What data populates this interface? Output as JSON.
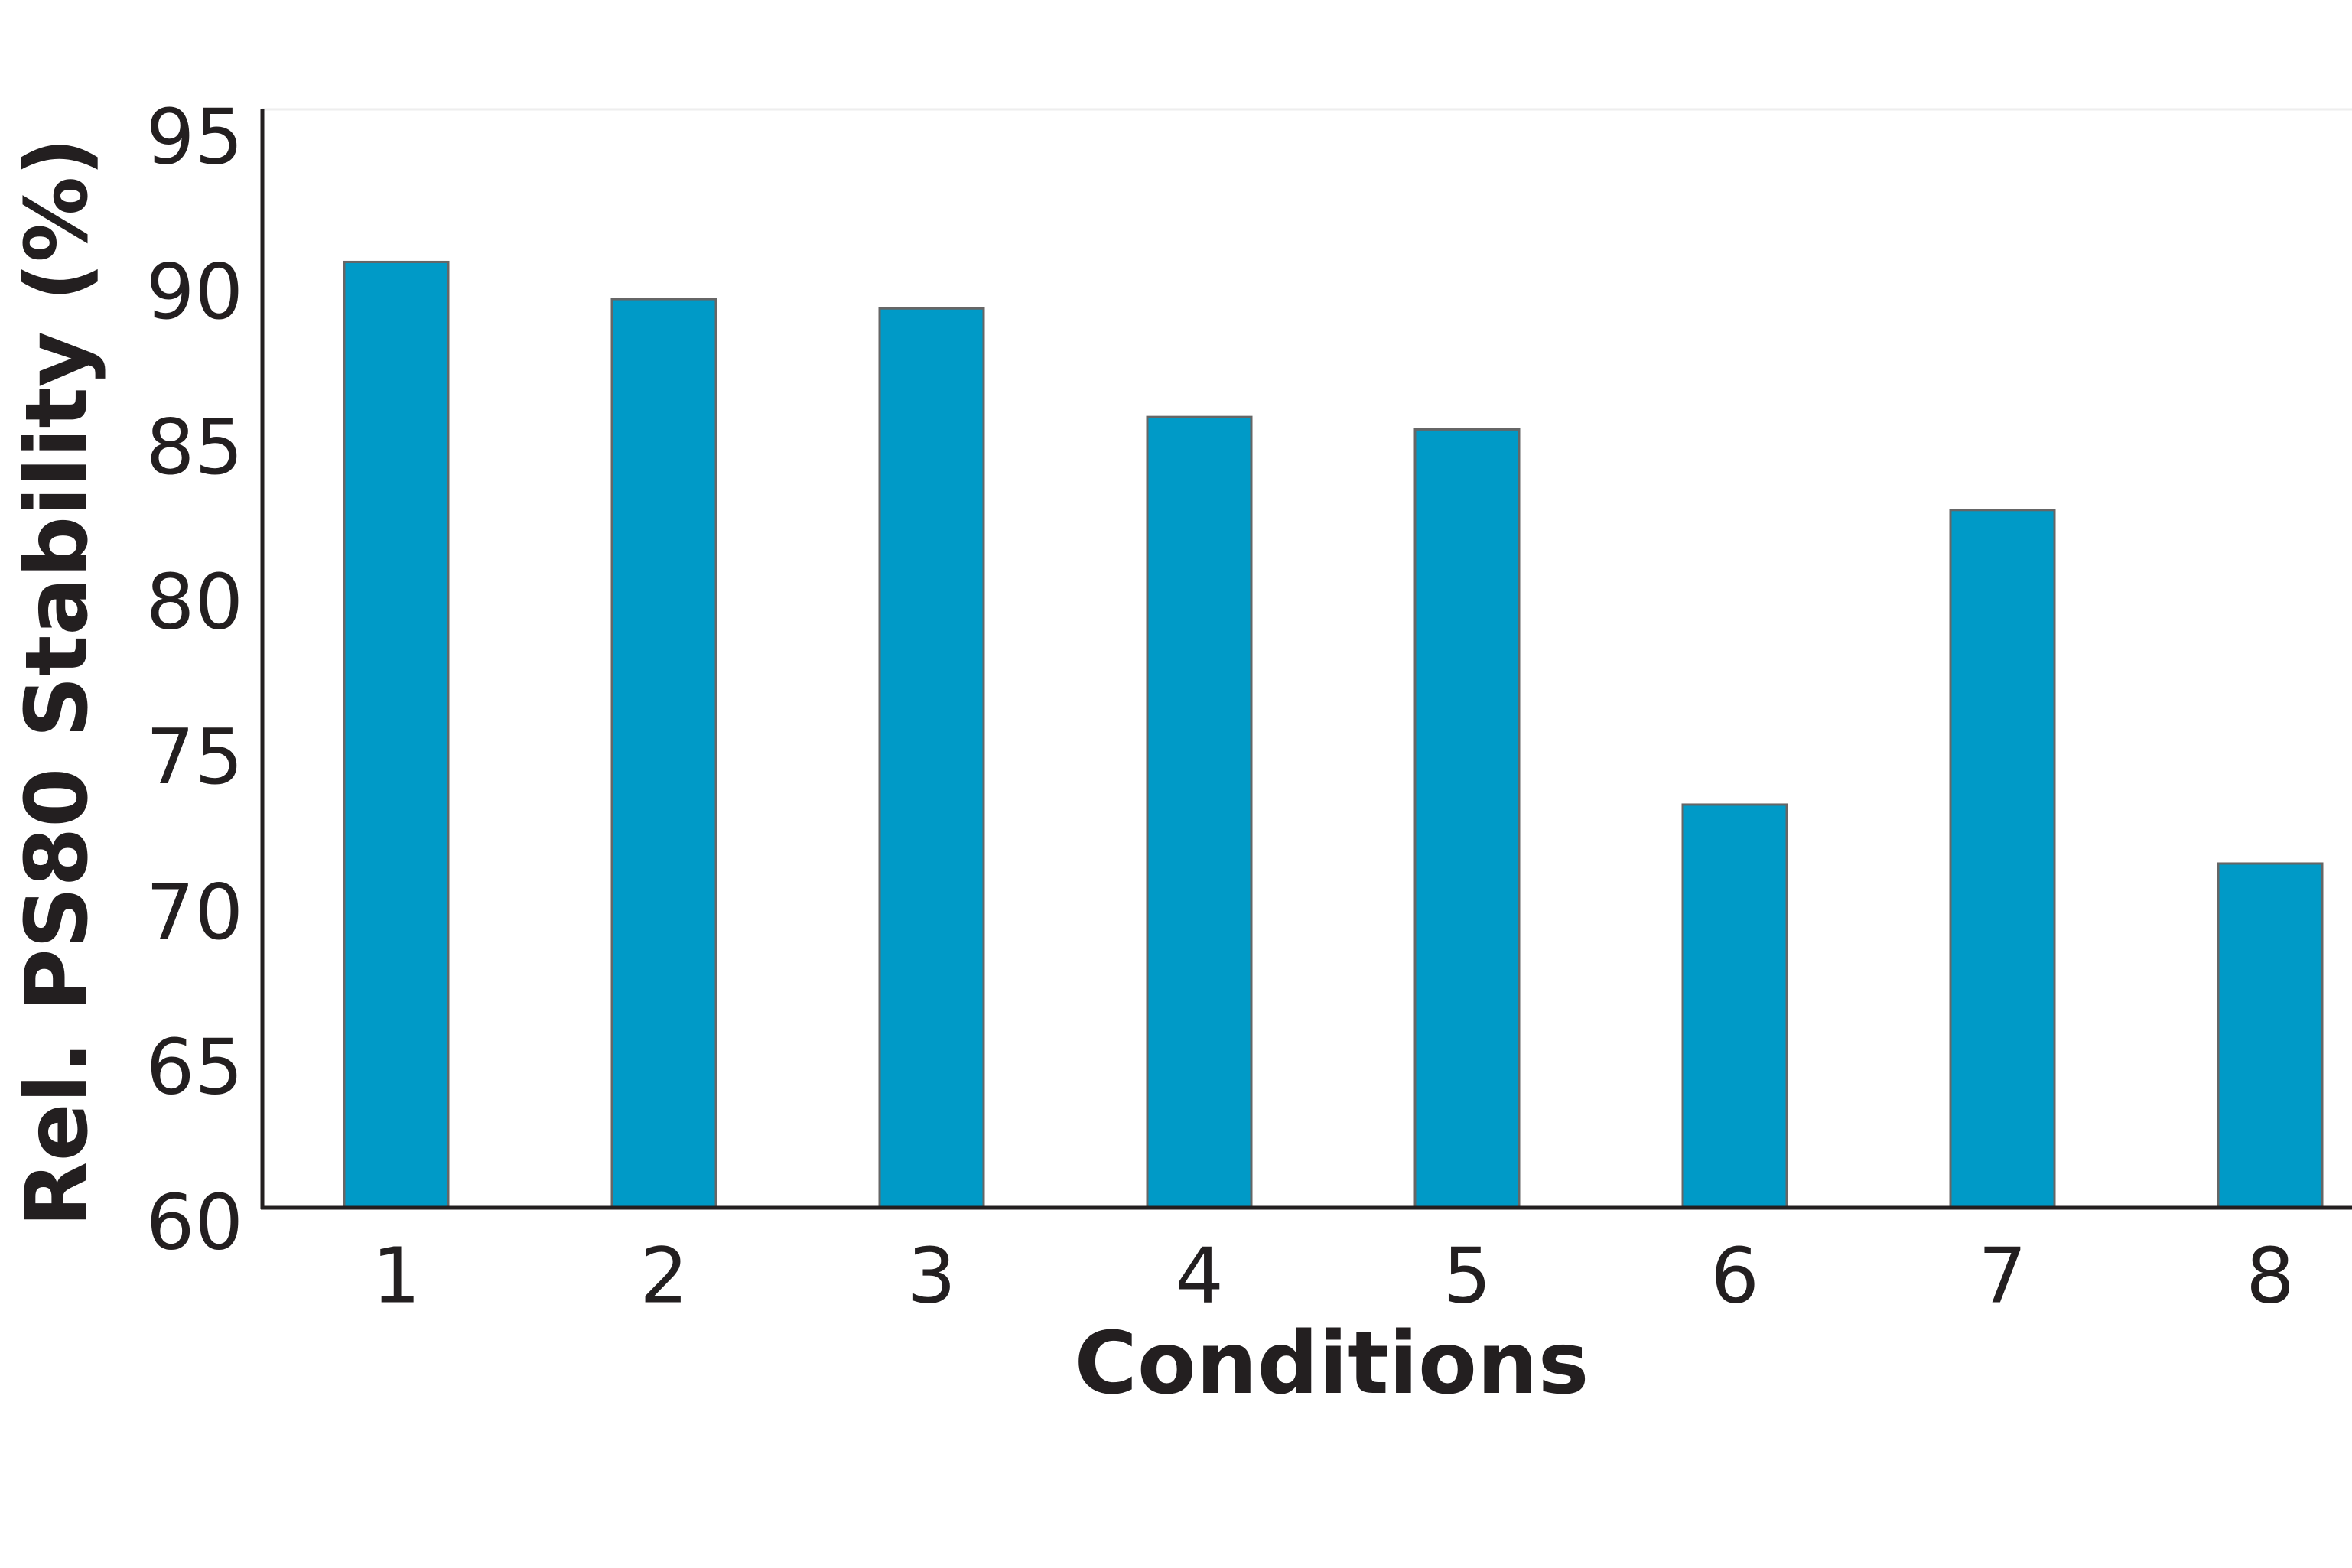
{
  "chart_data": {
    "type": "bar",
    "x_label": "Conditions",
    "y_label": "Rel. PS80 Stability (%)",
    "categories": [
      "1",
      "2",
      "3",
      "4",
      "5",
      "6",
      "7",
      "8"
    ],
    "values": [
      90.5,
      89.3,
      89.0,
      85.5,
      85.1,
      73.0,
      82.5,
      71.1
    ],
    "color": "#009ac7",
    "ylim": [
      60,
      95
    ],
    "yticks": [
      60,
      65,
      70,
      75,
      80,
      85,
      90,
      95
    ],
    "grid": false
  }
}
